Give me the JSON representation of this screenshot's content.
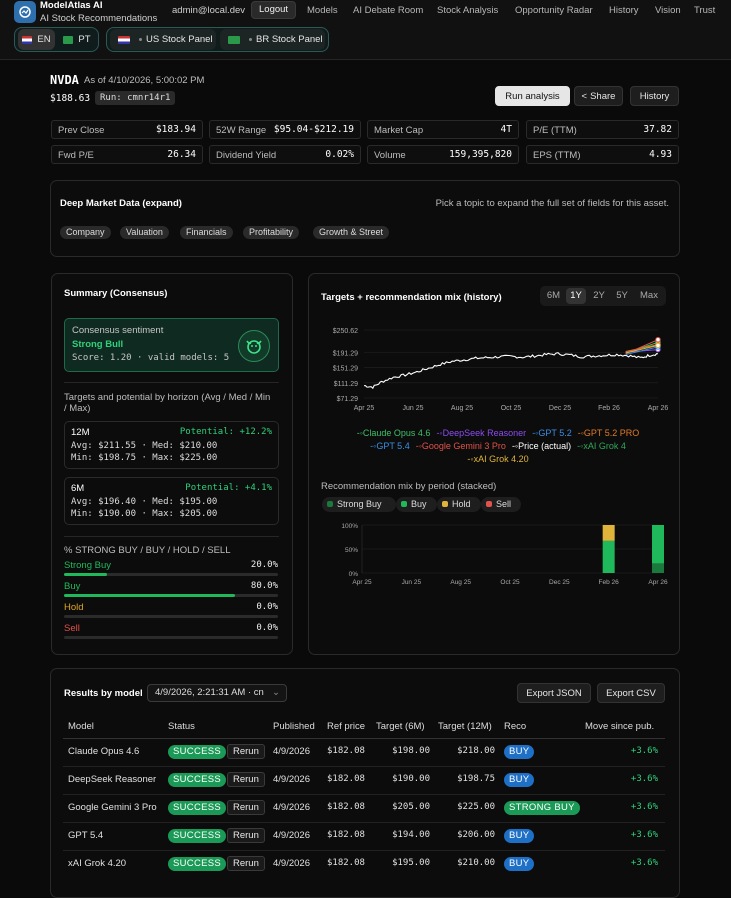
{
  "app": {
    "name": "ModelAtlas AI",
    "tagline": "AI Stock Recommendations",
    "user": "admin@local.dev",
    "logout": "Logout"
  },
  "nav": [
    "Models",
    "AI Debate Room",
    "Stock Analysis",
    "Opportunity Radar",
    "History",
    "Vision",
    "Trust"
  ],
  "lang": {
    "en": "EN",
    "pt": "PT"
  },
  "panels": {
    "us": "US Stock Panel",
    "br": "BR Stock Panel"
  },
  "ticker": {
    "symbol": "NVDA",
    "as_of": "As of 4/10/2026, 5:00:02 PM",
    "price": "$188.63",
    "run": "Run: cmnr14r1"
  },
  "actions": {
    "run": "Run analysis",
    "share": "Share",
    "history": "History"
  },
  "metrics": [
    {
      "label": "Prev Close",
      "value": "$183.94"
    },
    {
      "label": "52W Range",
      "value": "$95.04-$212.19"
    },
    {
      "label": "Market Cap",
      "value": "4T"
    },
    {
      "label": "P/E (TTM)",
      "value": "37.82"
    },
    {
      "label": "Fwd P/E",
      "value": "26.34"
    },
    {
      "label": "Dividend Yield",
      "value": "0.02%"
    },
    {
      "label": "Volume",
      "value": "159,395,820"
    },
    {
      "label": "EPS (TTM)",
      "value": "4.93"
    }
  ],
  "deep": {
    "title": "Deep Market Data (expand)",
    "hint": "Pick a topic to expand the full set of fields for this asset.",
    "topics": [
      "Company",
      "Valuation",
      "Financials",
      "Profitability",
      "Growth & Street"
    ]
  },
  "summary": {
    "title": "Summary (Consensus)",
    "sentiment_label": "Consensus sentiment",
    "sentiment": "Strong Bull",
    "score": "Score: 1.20 · valid models: 5",
    "horizon_title": "Targets and potential by horizon (Avg / Med / Min / Max)",
    "h12": {
      "label": "12M",
      "potential": "Potential: +12.2%",
      "avg": "Avg: $211.55 · Med: $210.00",
      "min": "Min: $198.75 · Max: $225.00"
    },
    "h6": {
      "label": "6M",
      "potential": "Potential: +4.1%",
      "avg": "Avg: $196.40 · Med: $195.00",
      "min": "Min: $190.00 · Max: $205.00"
    },
    "mix_title": "% STRONG BUY / BUY / HOLD / SELL",
    "mix": [
      {
        "label": "Strong Buy",
        "value": "20.0%",
        "pct": 0.2,
        "color": "#1fb85a"
      },
      {
        "label": "Buy",
        "value": "80.0%",
        "pct": 0.8,
        "color": "#1fb85a"
      },
      {
        "label": "Hold",
        "value": "0.0%",
        "pct": 0.0,
        "color": "#e0a526"
      },
      {
        "label": "Sell",
        "value": "0.0%",
        "pct": 0.0,
        "color": "#e0524a"
      }
    ]
  },
  "chart": {
    "title": "Targets + recommendation mix (history)",
    "ranges": [
      "6M",
      "1Y",
      "2Y",
      "5Y",
      "Max"
    ],
    "active_range": "1Y",
    "mix_title": "Recommendation mix by period (stacked)",
    "mix_legend": [
      {
        "label": "Strong Buy",
        "color": "#1a7a3e"
      },
      {
        "label": "Buy",
        "color": "#1fb85a"
      },
      {
        "label": "Hold",
        "color": "#e0b43a"
      },
      {
        "label": "Sell",
        "color": "#e0524a"
      }
    ]
  },
  "chart_data": [
    {
      "type": "line",
      "y_ticks": [
        "$250.62",
        "$191.29",
        "$151.29",
        "$111.29",
        "$71.29"
      ],
      "x_ticks": [
        "Apr 25",
        "Jun 25",
        "Aug 25",
        "Oct 25",
        "Dec 25",
        "Feb 26",
        "Apr 26"
      ],
      "ylim": [
        71.29,
        250.62
      ],
      "series": [
        {
          "name": "Claude Opus 4.6",
          "color": "#3fbf6a"
        },
        {
          "name": "DeepSeek Reasoner",
          "color": "#8a4df0"
        },
        {
          "name": "GPT 5.2",
          "color": "#3a8fe6"
        },
        {
          "name": "GPT 5.2 PRO",
          "color": "#e07a2a"
        },
        {
          "name": "GPT 5.4",
          "color": "#3a8fe6"
        },
        {
          "name": "Google Gemini 3 Pro",
          "color": "#e0524a"
        },
        {
          "name": "Price (actual)",
          "color": "#ffffff"
        },
        {
          "name": "xAI Grok 4",
          "color": "#2fa85a"
        },
        {
          "name": "xAI Grok 4.20",
          "color": "#e0b43a"
        }
      ],
      "price_anchors": [
        [
          0,
          104
        ],
        [
          3,
          100
        ],
        [
          6,
          114
        ],
        [
          10,
          126
        ],
        [
          14,
          132
        ],
        [
          18,
          140
        ],
        [
          22,
          150
        ],
        [
          26,
          160
        ],
        [
          30,
          168
        ],
        [
          34,
          172
        ],
        [
          38,
          176
        ],
        [
          42,
          178
        ],
        [
          46,
          180
        ],
        [
          50,
          181
        ],
        [
          54,
          179
        ],
        [
          58,
          182
        ],
        [
          62,
          186
        ],
        [
          66,
          188
        ],
        [
          70,
          185
        ],
        [
          74,
          180
        ],
        [
          78,
          182
        ],
        [
          82,
          184
        ],
        [
          86,
          186
        ],
        [
          90,
          183
        ],
        [
          94,
          177
        ],
        [
          97,
          184
        ],
        [
          100,
          188
        ]
      ]
    },
    {
      "type": "bar",
      "categories": [
        "Apr 25",
        "Jun 25",
        "Aug 25",
        "Oct 25",
        "Dec 25",
        "Feb 26",
        "Apr 26"
      ],
      "y_ticks": [
        "100%",
        "50%",
        "0%"
      ],
      "series": [
        {
          "name": "Strong Buy",
          "values": [
            0,
            0,
            0,
            0,
            0,
            0,
            20
          ]
        },
        {
          "name": "Buy",
          "values": [
            0,
            0,
            0,
            0,
            0,
            67,
            80
          ]
        },
        {
          "name": "Hold",
          "values": [
            0,
            0,
            0,
            0,
            0,
            33,
            0
          ]
        },
        {
          "name": "Sell",
          "values": [
            0,
            0,
            0,
            0,
            0,
            0,
            0
          ]
        }
      ]
    }
  ],
  "results": {
    "title": "Results by model",
    "run_select": "4/9/2026, 2:21:31 AM · cn",
    "export_json": "Export JSON",
    "export_csv": "Export CSV",
    "headers": [
      "Model",
      "Status",
      "Published",
      "Ref price",
      "Target (6M)",
      "Target (12M)",
      "Reco",
      "Move since pub."
    ],
    "rows": [
      {
        "model": "Claude Opus 4.6",
        "status": "SUCCESS",
        "rerun": "Rerun",
        "published": "4/9/2026",
        "ref": "$182.08",
        "t6": "$198.00",
        "t12": "$218.00",
        "reco": "BUY",
        "move": "+3.6%"
      },
      {
        "model": "DeepSeek Reasoner",
        "status": "SUCCESS",
        "rerun": "Rerun",
        "published": "4/9/2026",
        "ref": "$182.08",
        "t6": "$190.00",
        "t12": "$198.75",
        "reco": "BUY",
        "move": "+3.6%"
      },
      {
        "model": "Google Gemini 3 Pro",
        "status": "SUCCESS",
        "rerun": "Rerun",
        "published": "4/9/2026",
        "ref": "$182.08",
        "t6": "$205.00",
        "t12": "$225.00",
        "reco": "STRONG BUY",
        "move": "+3.6%"
      },
      {
        "model": "GPT 5.4",
        "status": "SUCCESS",
        "rerun": "Rerun",
        "published": "4/9/2026",
        "ref": "$182.08",
        "t6": "$194.00",
        "t12": "$206.00",
        "reco": "BUY",
        "move": "+3.6%"
      },
      {
        "model": "xAI Grok 4.20",
        "status": "SUCCESS",
        "rerun": "Rerun",
        "published": "4/9/2026",
        "ref": "$182.08",
        "t6": "$195.00",
        "t12": "$210.00",
        "reco": "BUY",
        "move": "+3.6%"
      }
    ]
  }
}
